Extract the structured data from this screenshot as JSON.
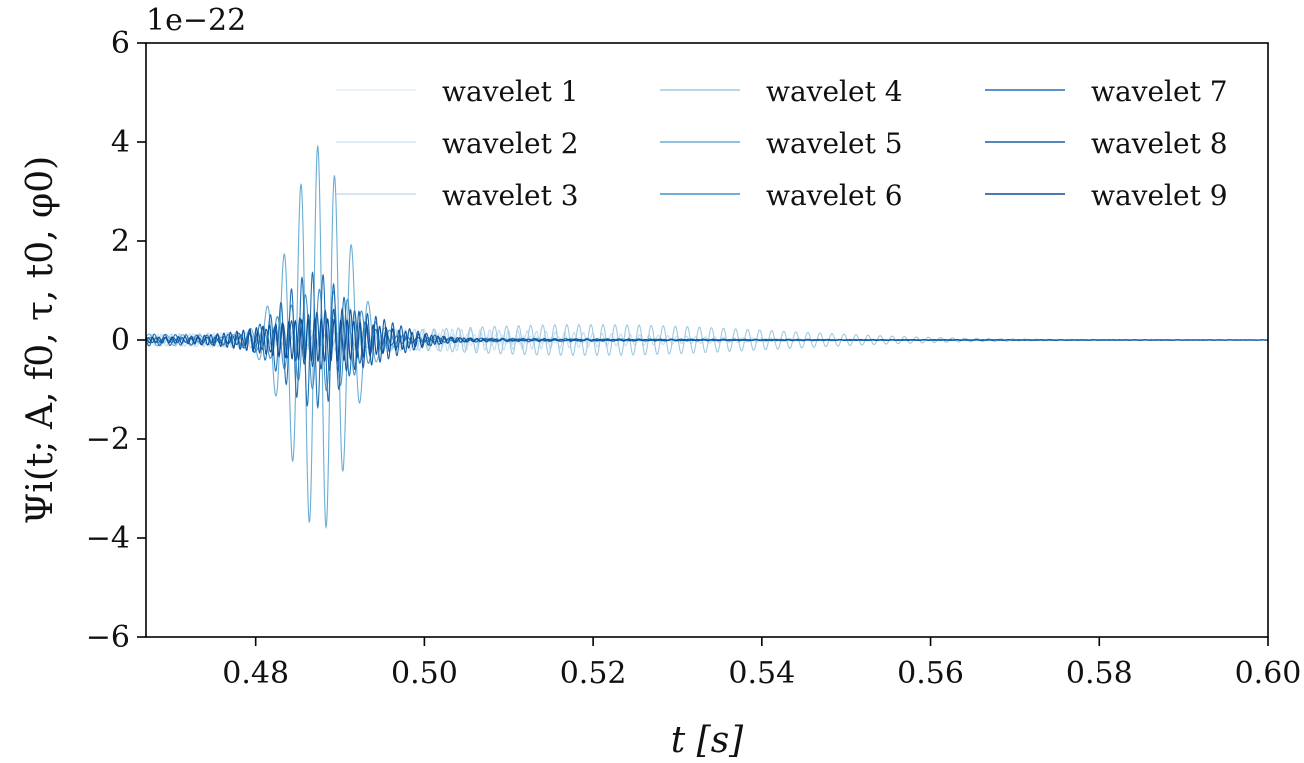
{
  "chart_data": {
    "type": "line",
    "xlabel": "t [s]",
    "ylabel": "Ψi(t; A, f0, τ, t0, φ0)",
    "y_offset_label": "1e−22",
    "xlim": [
      0.467,
      0.6
    ],
    "ylim": [
      -6,
      6
    ],
    "xticks": [
      0.48,
      0.5,
      0.52,
      0.54,
      0.56,
      0.58,
      0.6
    ],
    "xtick_labels": [
      "0.48",
      "0.50",
      "0.52",
      "0.54",
      "0.56",
      "0.58",
      "0.60"
    ],
    "yticks": [
      -6,
      -4,
      -2,
      0,
      2,
      4,
      6
    ],
    "ytick_labels": [
      "−6",
      "−4",
      "−2",
      "0",
      "2",
      "4",
      "6"
    ],
    "grid": false,
    "legend_position": "top-right",
    "legend_columns": 3,
    "series": [
      {
        "name": "wavelet 1",
        "color": "#e3eef9",
        "peak_amplitude": 0.1,
        "center_t": 0.487,
        "width_s": 0.02,
        "freq_hz": 1500
      },
      {
        "name": "wavelet 2",
        "color": "#d6e6f4",
        "peak_amplitude": 0.15,
        "center_t": 0.49,
        "width_s": 0.025,
        "freq_hz": 1200
      },
      {
        "name": "wavelet 3",
        "color": "#c6dbef",
        "peak_amplitude": 0.2,
        "center_t": 0.5,
        "width_s": 0.03,
        "freq_hz": 900
      },
      {
        "name": "wavelet 4",
        "color": "#9ecae1",
        "peak_amplitude": 0.3,
        "center_t": 0.52,
        "width_s": 0.03,
        "freq_hz": 700
      },
      {
        "name": "wavelet 5",
        "color": "#6baed6",
        "peak_amplitude": 3.85,
        "center_t": 0.4875,
        "width_s": 0.0045,
        "freq_hz": 500
      },
      {
        "name": "wavelet 6",
        "color": "#4292c6",
        "peak_amplitude": 1.0,
        "center_t": 0.488,
        "width_s": 0.006,
        "freq_hz": 600
      },
      {
        "name": "wavelet 7",
        "color": "#2171b5",
        "peak_amplitude": 1.3,
        "center_t": 0.487,
        "width_s": 0.005,
        "freq_hz": 800
      },
      {
        "name": "wavelet 8",
        "color": "#1a5fa3",
        "peak_amplitude": 0.6,
        "center_t": 0.49,
        "width_s": 0.008,
        "freq_hz": 1000
      },
      {
        "name": "wavelet 9",
        "color": "#08519c",
        "peak_amplitude": 0.4,
        "center_t": 0.488,
        "width_s": 0.01,
        "freq_hz": 1300
      }
    ]
  }
}
